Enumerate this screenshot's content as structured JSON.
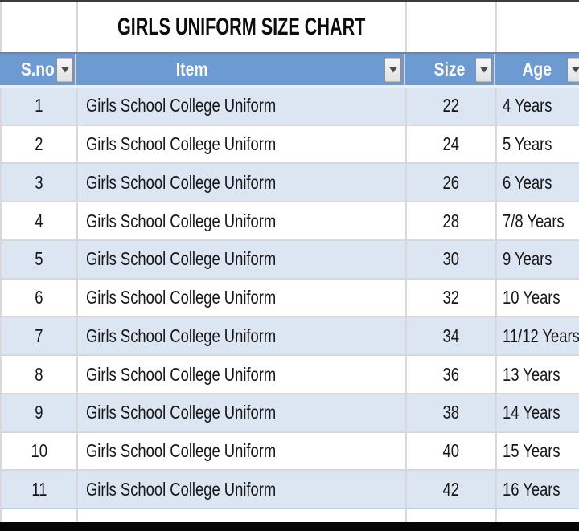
{
  "title": "GIRLS UNIFORM SIZE CHART",
  "table": {
    "columns": [
      {
        "id": "sno",
        "label": "S.no"
      },
      {
        "id": "item",
        "label": "Item"
      },
      {
        "id": "size",
        "label": "Size"
      },
      {
        "id": "age",
        "label": "Age"
      }
    ],
    "rows": [
      {
        "sno": "1",
        "item": "Girls School College Uniform",
        "size": "22",
        "age": "4 Years"
      },
      {
        "sno": "2",
        "item": "Girls School College Uniform",
        "size": "24",
        "age": "5 Years"
      },
      {
        "sno": "3",
        "item": "Girls School College Uniform",
        "size": "26",
        "age": "6 Years"
      },
      {
        "sno": "4",
        "item": "Girls School College Uniform",
        "size": "28",
        "age": "7/8 Years"
      },
      {
        "sno": "5",
        "item": "Girls School College Uniform",
        "size": "30",
        "age": "9 Years"
      },
      {
        "sno": "6",
        "item": "Girls School College Uniform",
        "size": "32",
        "age": "10 Years"
      },
      {
        "sno": "7",
        "item": "Girls School College Uniform",
        "size": "34",
        "age": "11/12 Years"
      },
      {
        "sno": "8",
        "item": "Girls School College Uniform",
        "size": "36",
        "age": "13 Years"
      },
      {
        "sno": "9",
        "item": "Girls School College Uniform",
        "size": "38",
        "age": "14 Years"
      },
      {
        "sno": "10",
        "item": "Girls School College Uniform",
        "size": "40",
        "age": "15 Years"
      },
      {
        "sno": "11",
        "item": "Girls School College Uniform",
        "size": "42",
        "age": "16 Years"
      }
    ]
  },
  "icons": {
    "filter_dropdown": "filter-dropdown-arrow"
  },
  "colors": {
    "header_bg": "#6C9AD1",
    "banded_row_bg": "#DCE6F2",
    "header_text": "#FFFFFF",
    "gridline": "#D8D8D8",
    "bottom_bar": "#050505"
  }
}
